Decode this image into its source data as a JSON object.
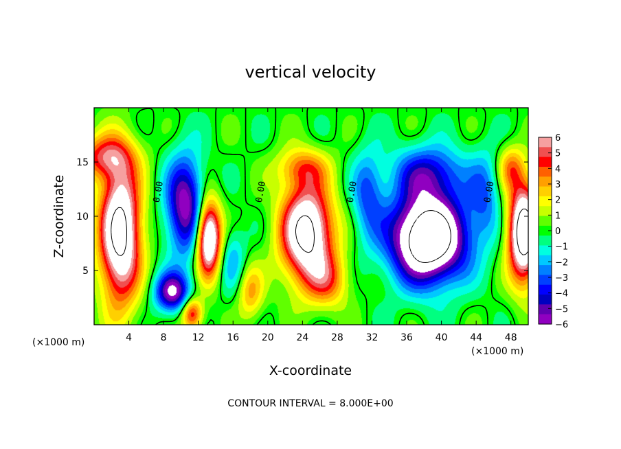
{
  "chart_data": {
    "type": "heatmap",
    "title": "vertical velocity",
    "xlabel": "X-coordinate",
    "ylabel": "Z-coordinate",
    "x_unit_note": "(×1000 m)",
    "xlim": [
      0,
      50
    ],
    "ylim": [
      0,
      20
    ],
    "x_ticks": [
      4,
      8,
      12,
      16,
      20,
      24,
      28,
      32,
      36,
      40,
      44,
      48
    ],
    "y_ticks": [
      5,
      10,
      15
    ],
    "colorbar": {
      "min": -6,
      "max": 6,
      "ticks": [
        6,
        5,
        4,
        3,
        2,
        1,
        0,
        -1,
        -2,
        -3,
        -4,
        -5,
        -6
      ],
      "colors": [
        "#f6a0a0",
        "#f05050",
        "#ff0000",
        "#ff6000",
        "#ffa000",
        "#ffd000",
        "#ffff00",
        "#c8ff00",
        "#60ff00",
        "#00ff00",
        "#00ff80",
        "#00ffe0",
        "#00c8ff",
        "#0080ff",
        "#0040ff",
        "#0000ff",
        "#0000c0",
        "#6000b0",
        "#9000c0"
      ]
    },
    "zero_contour_label": "0.00",
    "zero_contour_x": [
      7.7,
      19.5,
      30.0,
      45.8
    ],
    "footer": "CONTOUR INTERVAL = 8.000E+00",
    "features": [
      {
        "x": 3.0,
        "z": 8.5,
        "w": 9,
        "sx": 2.4,
        "sz": 6.5
      },
      {
        "x": 1.0,
        "z": 15.5,
        "w": 4,
        "sx": 3.5,
        "sz": 2.0
      },
      {
        "x": 10.5,
        "z": 11.0,
        "w": -6,
        "sx": 2.2,
        "sz": 4.5
      },
      {
        "x": 13.2,
        "z": 8.0,
        "w": 9,
        "sx": 1.4,
        "sz": 3.5
      },
      {
        "x": 9.0,
        "z": 3.0,
        "w": -6,
        "sx": 2.0,
        "sz": 1.8
      },
      {
        "x": 11.3,
        "z": 1.0,
        "w": 5,
        "sx": 1.2,
        "sz": 1.5
      },
      {
        "x": 16.0,
        "z": 6.0,
        "w": -2,
        "sx": 1.5,
        "sz": 3.0
      },
      {
        "x": 18.0,
        "z": 3.0,
        "w": 3,
        "sx": 1.5,
        "sz": 2.5
      },
      {
        "x": 24.5,
        "z": 8.5,
        "w": 9,
        "sx": 3.0,
        "sz": 4.5
      },
      {
        "x": 24.0,
        "z": 14.5,
        "w": 3,
        "sx": 3.0,
        "sz": 1.8
      },
      {
        "x": 27.0,
        "z": 4.0,
        "w": 3,
        "sx": 2.5,
        "sz": 2.5
      },
      {
        "x": 31.5,
        "z": 12.0,
        "w": -3,
        "sx": 1.8,
        "sz": 4.0
      },
      {
        "x": 38.5,
        "z": 8.0,
        "w": -11,
        "sx": 4.3,
        "sz": 4.0
      },
      {
        "x": 38.5,
        "z": 14.0,
        "w": -4,
        "sx": 4.0,
        "sz": 2.5
      },
      {
        "x": 45.0,
        "z": 12.0,
        "w": -2.5,
        "sx": 1.8,
        "sz": 4.0
      },
      {
        "x": 49.5,
        "z": 8.5,
        "w": 10,
        "sx": 1.8,
        "sz": 4.5
      },
      {
        "x": 48.0,
        "z": 14.5,
        "w": 3,
        "sx": 1.5,
        "sz": 2.0
      }
    ]
  }
}
